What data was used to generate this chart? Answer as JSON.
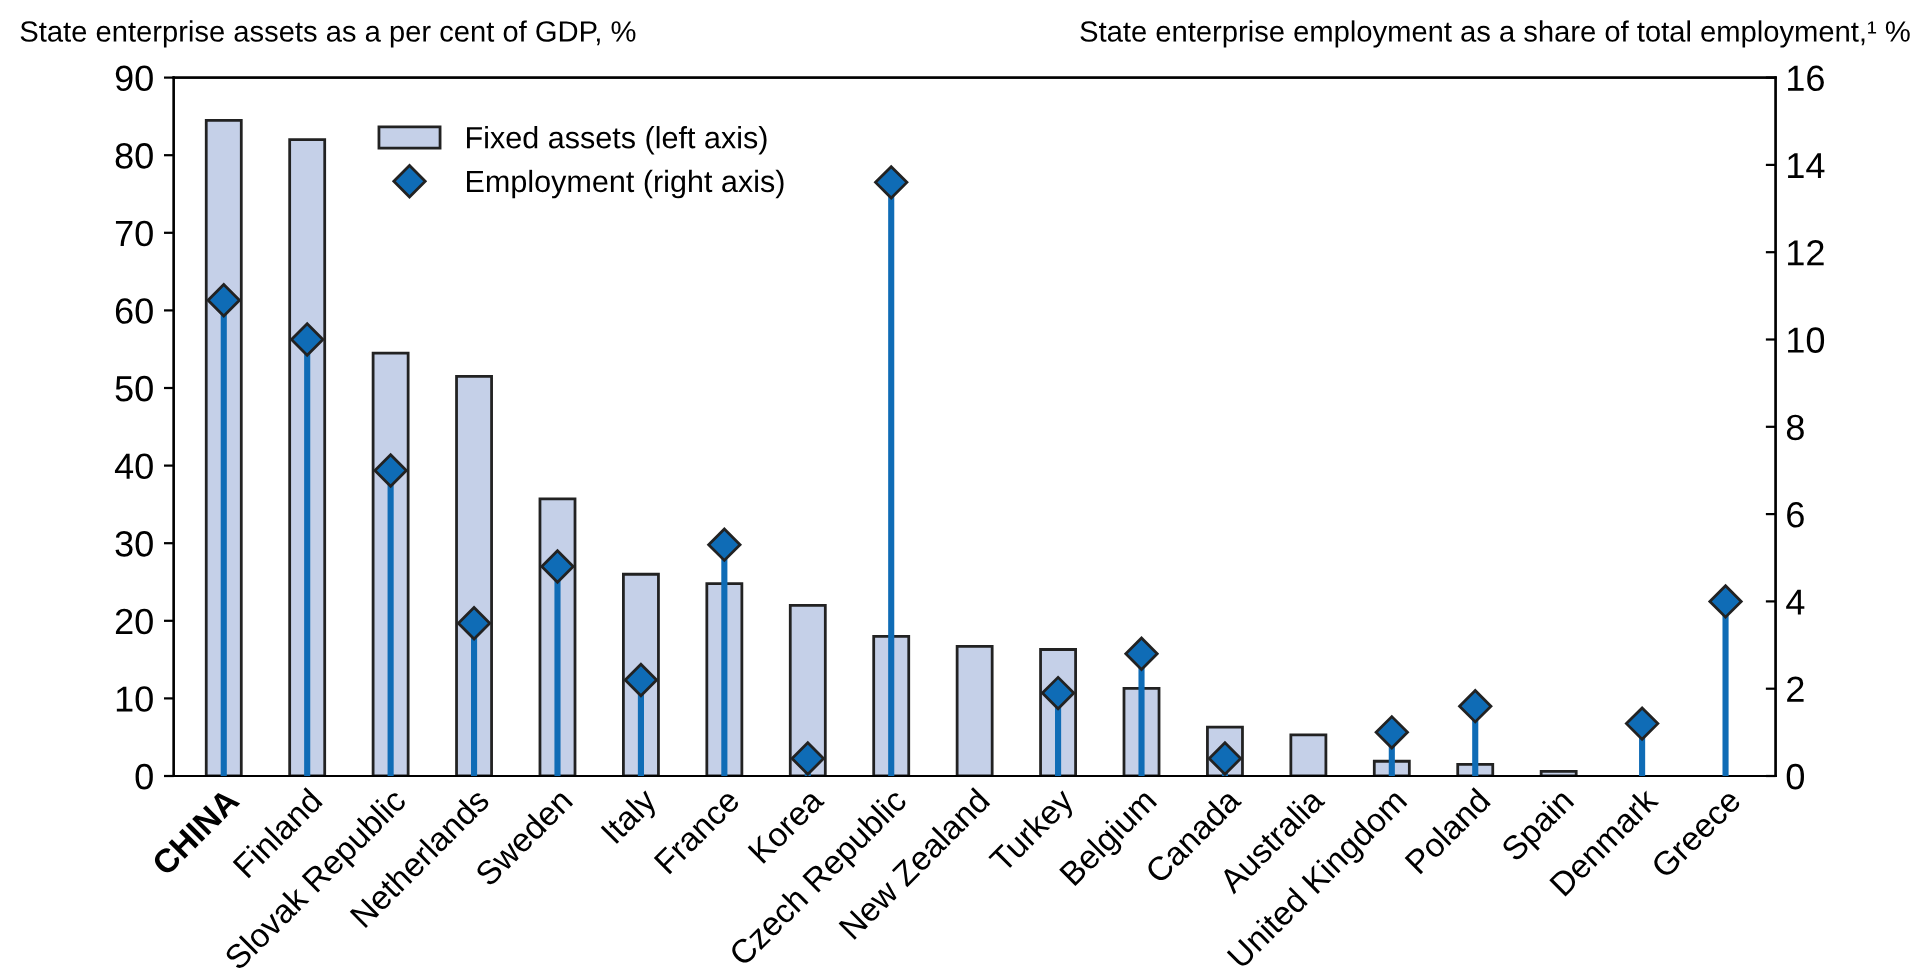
{
  "chart_data": {
    "type": "bar",
    "ylabel": "State enterprise assets as a per cent of GDP, %",
    "y2label": "State enterprise employment as a share of total employment,¹ %",
    "categories": [
      "CHINA",
      "Finland",
      "Slovak Republic",
      "Netherlands",
      "Sweden",
      "Italy",
      "France",
      "Korea",
      "Czech Republic",
      "New Zealand",
      "Turkey",
      "Belgium",
      "Canada",
      "Australia",
      "United Kingdom",
      "Poland",
      "Spain",
      "Denmark",
      "Greece"
    ],
    "series": [
      {
        "name": "Fixed assets (left axis)",
        "color": "#c5d0e8",
        "values": [
          84.5,
          82,
          54.5,
          51.5,
          35.7,
          26,
          24.8,
          22,
          18,
          16.7,
          16.3,
          11.3,
          6.3,
          5.3,
          1.9,
          1.5,
          0.6,
          null,
          null
        ]
      },
      {
        "name": "Employment (right axis)",
        "type": "lollipop",
        "axis": "y2",
        "color": "#0f6cb6",
        "marker": "diamond",
        "values": [
          10.9,
          10,
          7.0,
          3.5,
          4.8,
          2.2,
          5.3,
          0.4,
          13.6,
          null,
          1.9,
          2.8,
          0.4,
          null,
          1.0,
          1.6,
          null,
          1.2,
          4.0
        ]
      }
    ],
    "ylim": [
      0,
      90
    ],
    "yticks": [
      0,
      10,
      20,
      30,
      40,
      50,
      60,
      70,
      80,
      90
    ],
    "y2lim": [
      0,
      16
    ],
    "y2ticks": [
      0,
      2,
      4,
      6,
      8,
      10,
      12,
      14,
      16
    ],
    "grid": false,
    "legend": "top"
  }
}
